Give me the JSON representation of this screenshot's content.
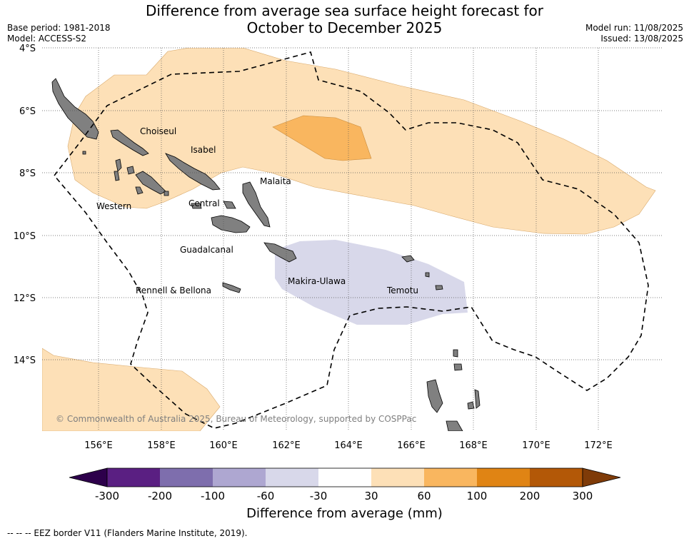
{
  "title_line1": "Difference from average sea surface height forecast for",
  "title_line2": "October to December 2025",
  "meta_left": {
    "base_period": "Base period: 1981-2018",
    "model": "Model: ACCESS-S2"
  },
  "meta_right": {
    "model_run": "Model run: 11/08/2025",
    "issued": "Issued: 13/08/2025"
  },
  "lat_labels": [
    "4°S",
    "6°S",
    "8°S",
    "10°S",
    "12°S",
    "14°S"
  ],
  "lon_labels": [
    "156°E",
    "158°E",
    "160°E",
    "162°E",
    "164°E",
    "166°E",
    "168°E",
    "170°E",
    "172°E"
  ],
  "regions": [
    "Choiseul",
    "Isabel",
    "Malaita",
    "Western",
    "Central",
    "Guadalcanal",
    "Makira-Ulawa",
    "Rennell & Bellona",
    "Temotu"
  ],
  "copyright": "© Commonwealth of Australia 2025, Bureau of Meteorology, supported by COSPPac",
  "colorbar": {
    "title": "Difference from average (mm)",
    "ticks": [
      "-300",
      "-200",
      "-100",
      "-60",
      "-30",
      "30",
      "60",
      "100",
      "200",
      "300"
    ],
    "colors": [
      "#5a1f82",
      "#7e6ead",
      "#aea7d1",
      "#d8d8ea",
      "#ffffff",
      "#fde0b7",
      "#f9b65f",
      "#e08414",
      "#b35807"
    ],
    "extend_low_color": "#2d004b",
    "extend_high_color": "#7f3b08"
  },
  "eez_legend": "--  --  -- EEZ border V11 (Flanders Marine Institute, 2019).",
  "colors": {
    "land": "#808080",
    "positive_30_60": "#fde0b7",
    "positive_60_100": "#f9b65f",
    "negative_30_60": "#d8d8ea"
  }
}
